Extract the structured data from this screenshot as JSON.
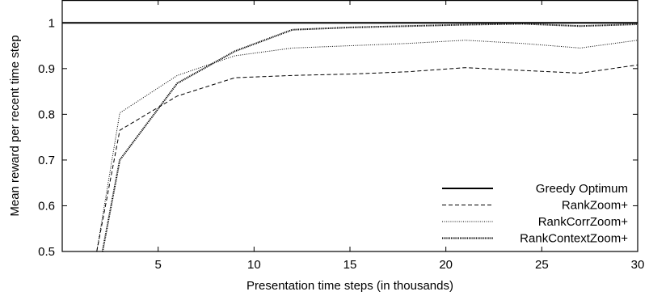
{
  "chart_data": {
    "type": "line",
    "title": "",
    "xlabel": "Presentation time steps (in thousands)",
    "ylabel": "Mean reward per recent time step",
    "xlim": [
      0,
      30
    ],
    "ylim": [
      0.5,
      1.05
    ],
    "xticks": [
      5,
      10,
      15,
      20,
      25,
      30
    ],
    "yticks": [
      0.5,
      0.6,
      0.7,
      0.8,
      0.9,
      1
    ],
    "xtick_labels": [
      "5",
      "10",
      "15",
      "20",
      "25",
      "30"
    ],
    "ytick_labels": [
      "0.5",
      "0.6",
      "0.7",
      "0.8",
      "0.9",
      "1"
    ],
    "grid": false,
    "legend_position": "bottom-right",
    "series": [
      {
        "name": "Greedy Optimum",
        "style": "solid",
        "color": "#000000",
        "x": [
          0,
          30
        ],
        "y": [
          1.0,
          1.0
        ]
      },
      {
        "name": "RankZoom+",
        "style": "dashed",
        "color": "#000000",
        "x": [
          1.8,
          3,
          6,
          9,
          12,
          15,
          18,
          21,
          24,
          27,
          30
        ],
        "y": [
          0.5,
          0.765,
          0.84,
          0.88,
          0.885,
          0.888,
          0.893,
          0.902,
          0.896,
          0.89,
          0.908
        ]
      },
      {
        "name": "RankCorrZoom+",
        "style": "dotted",
        "color": "#000000",
        "x": [
          1.8,
          3,
          6,
          9,
          12,
          15,
          18,
          21,
          24,
          27,
          30
        ],
        "y": [
          0.5,
          0.803,
          0.885,
          0.928,
          0.945,
          0.95,
          0.955,
          0.962,
          0.955,
          0.945,
          0.962
        ]
      },
      {
        "name": "RankContextZoom+",
        "style": "dense-dotted",
        "color": "#000000",
        "x": [
          2.1,
          3,
          6,
          9,
          12,
          15,
          18,
          21,
          24,
          27,
          30
        ],
        "y": [
          0.5,
          0.7,
          0.868,
          0.938,
          0.985,
          0.99,
          0.993,
          0.996,
          0.998,
          0.993,
          0.997
        ]
      }
    ]
  }
}
